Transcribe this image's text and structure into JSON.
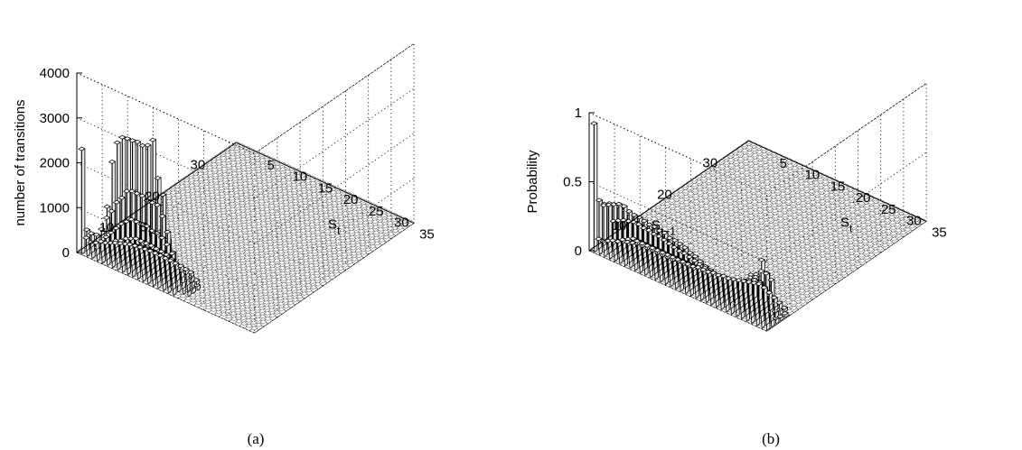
{
  "chart_data": [
    {
      "type": "bar3d",
      "panel_label": "(a)",
      "zlabel": "number of transitions",
      "xlabel": "S",
      "xlabel_sub": "t",
      "ylabel": "S",
      "ylabel_sub": "t−1",
      "zlim": [
        0,
        4000
      ],
      "zticks": [
        "0",
        "1000",
        "2000",
        "3000",
        "4000"
      ],
      "xticks": [
        "5",
        "10",
        "15",
        "20",
        "25",
        "30",
        "35"
      ],
      "yticks": [
        "10",
        "20",
        "30"
      ],
      "grid": true,
      "grid_size": 35,
      "description_of_values": "counts of transitions from state S(t-1) to S(t); large bars concentrated at small S(t-1) and small-to-medium S(t)",
      "rows": [
        {
          "s_prev": 1,
          "values": [
            2300,
            550,
            320,
            260,
            560,
            1270,
            2320,
            2800,
            2970,
            2990,
            3000,
            3020,
            2990,
            3050,
            3220,
            2420,
            2100,
            1150,
            150,
            60,
            40,
            30,
            20,
            15,
            10,
            10,
            8,
            6,
            5,
            4,
            3,
            2,
            2,
            1,
            1
          ]
        },
        {
          "s_prev": 2,
          "values": [
            250,
            400,
            420,
            600,
            900,
            1100,
            1350,
            1500,
            1700,
            1750,
            1750,
            1750,
            1700,
            1700,
            1700,
            1500,
            1200,
            800,
            400,
            200,
            100,
            60,
            40,
            20,
            10,
            8,
            6,
            5,
            4,
            3,
            2,
            2,
            1,
            1,
            1
          ]
        },
        {
          "s_prev": 3,
          "values": [
            80,
            120,
            200,
            350,
            500,
            650,
            800,
            900,
            1000,
            1000,
            1000,
            1000,
            950,
            950,
            900,
            800,
            650,
            450,
            300,
            200,
            100,
            60,
            30,
            20,
            10,
            8,
            6,
            5,
            4,
            3,
            2,
            2,
            1,
            1,
            1
          ]
        },
        {
          "s_prev": 4,
          "values": [
            30,
            60,
            100,
            150,
            250,
            300,
            400,
            450,
            500,
            500,
            500,
            500,
            480,
            470,
            450,
            400,
            320,
            250,
            180,
            120,
            80,
            50,
            30,
            15,
            10,
            8,
            6,
            5,
            4,
            3,
            2,
            2,
            1,
            1,
            1
          ]
        },
        {
          "s_prev": 5,
          "values": [
            15,
            30,
            50,
            80,
            120,
            160,
            200,
            230,
            260,
            270,
            270,
            270,
            260,
            250,
            240,
            210,
            180,
            140,
            100,
            70,
            50,
            30,
            20,
            10,
            6,
            5,
            4,
            3,
            2,
            2,
            1,
            1,
            1,
            1,
            1
          ]
        },
        {
          "s_prev": 6,
          "values": [
            8,
            15,
            25,
            40,
            60,
            80,
            100,
            120,
            130,
            140,
            140,
            140,
            130,
            130,
            120,
            110,
            90,
            70,
            50,
            35,
            25,
            15,
            10,
            6,
            4,
            3,
            2,
            2,
            1,
            1,
            1,
            1,
            1,
            1,
            1
          ]
        }
      ]
    },
    {
      "type": "bar3d",
      "panel_label": "(b)",
      "zlabel": "Probability",
      "xlabel": "S",
      "xlabel_sub": "t",
      "ylabel": "S",
      "ylabel_sub": "t−1",
      "zlim": [
        0,
        1
      ],
      "zticks": [
        "0",
        "0.5",
        "1"
      ],
      "xticks": [
        "5",
        "10",
        "15",
        "20",
        "25",
        "30",
        "35"
      ],
      "yticks": [
        "10",
        "20",
        "30"
      ],
      "grid": true,
      "grid_size": 35,
      "description_of_values": "transition probabilities P(S(t) | S(t-1)); row-normalised version of panel (a)",
      "rows": [
        {
          "s_prev": 1,
          "values": [
            0.92,
            0.38,
            0.37,
            0.39,
            0.4,
            0.4,
            0.39,
            0.38,
            0.38,
            0.37,
            0.36,
            0.35,
            0.34,
            0.33,
            0.32,
            0.3,
            0.3,
            0.29,
            0.27,
            0.26,
            0.24,
            0.22,
            0.2,
            0.18,
            0.16,
            0.14,
            0.12,
            0.1,
            0.08,
            0.1,
            0.14,
            0.18,
            0.26,
            0.48,
            0.4
          ]
        },
        {
          "s_prev": 2,
          "values": [
            0.06,
            0.32,
            0.34,
            0.36,
            0.38,
            0.38,
            0.36,
            0.35,
            0.35,
            0.34,
            0.33,
            0.33,
            0.32,
            0.32,
            0.3,
            0.3,
            0.29,
            0.28,
            0.26,
            0.25,
            0.23,
            0.21,
            0.2,
            0.18,
            0.16,
            0.15,
            0.14,
            0.13,
            0.16,
            0.24,
            0.3,
            0.32,
            0.36,
            0.36,
            0.33
          ]
        },
        {
          "s_prev": 3,
          "values": [
            0.02,
            0.04,
            0.2,
            0.22,
            0.24,
            0.25,
            0.26,
            0.26,
            0.25,
            0.25,
            0.24,
            0.24,
            0.23,
            0.22,
            0.21,
            0.2,
            0.2,
            0.19,
            0.18,
            0.17,
            0.16,
            0.15,
            0.14,
            0.14,
            0.13,
            0.13,
            0.14,
            0.16,
            0.2,
            0.24,
            0.26,
            0.22,
            0.14,
            0.06,
            0.03
          ]
        },
        {
          "s_prev": 4,
          "values": [
            0.01,
            0.02,
            0.03,
            0.06,
            0.08,
            0.1,
            0.1,
            0.1,
            0.1,
            0.1,
            0.1,
            0.1,
            0.1,
            0.1,
            0.1,
            0.1,
            0.1,
            0.1,
            0.1,
            0.1,
            0.1,
            0.1,
            0.1,
            0.1,
            0.1,
            0.12,
            0.14,
            0.16,
            0.18,
            0.2,
            0.2,
            0.16,
            0.1,
            0.04,
            0.02
          ]
        },
        {
          "s_prev": 5,
          "values": [
            0.01,
            0.01,
            0.02,
            0.02,
            0.03,
            0.04,
            0.04,
            0.04,
            0.04,
            0.04,
            0.04,
            0.04,
            0.04,
            0.05,
            0.05,
            0.05,
            0.05,
            0.06,
            0.06,
            0.06,
            0.07,
            0.07,
            0.08,
            0.08,
            0.09,
            0.1,
            0.12,
            0.14,
            0.16,
            0.16,
            0.14,
            0.1,
            0.06,
            0.03,
            0.02
          ]
        },
        {
          "s_prev": 6,
          "values": [
            0.01,
            0.01,
            0.01,
            0.01,
            0.02,
            0.02,
            0.02,
            0.02,
            0.02,
            0.02,
            0.02,
            0.02,
            0.02,
            0.02,
            0.02,
            0.02,
            0.03,
            0.03,
            0.03,
            0.04,
            0.04,
            0.05,
            0.05,
            0.06,
            0.07,
            0.08,
            0.09,
            0.1,
            0.11,
            0.1,
            0.08,
            0.06,
            0.04,
            0.02,
            0.01
          ]
        }
      ]
    }
  ]
}
